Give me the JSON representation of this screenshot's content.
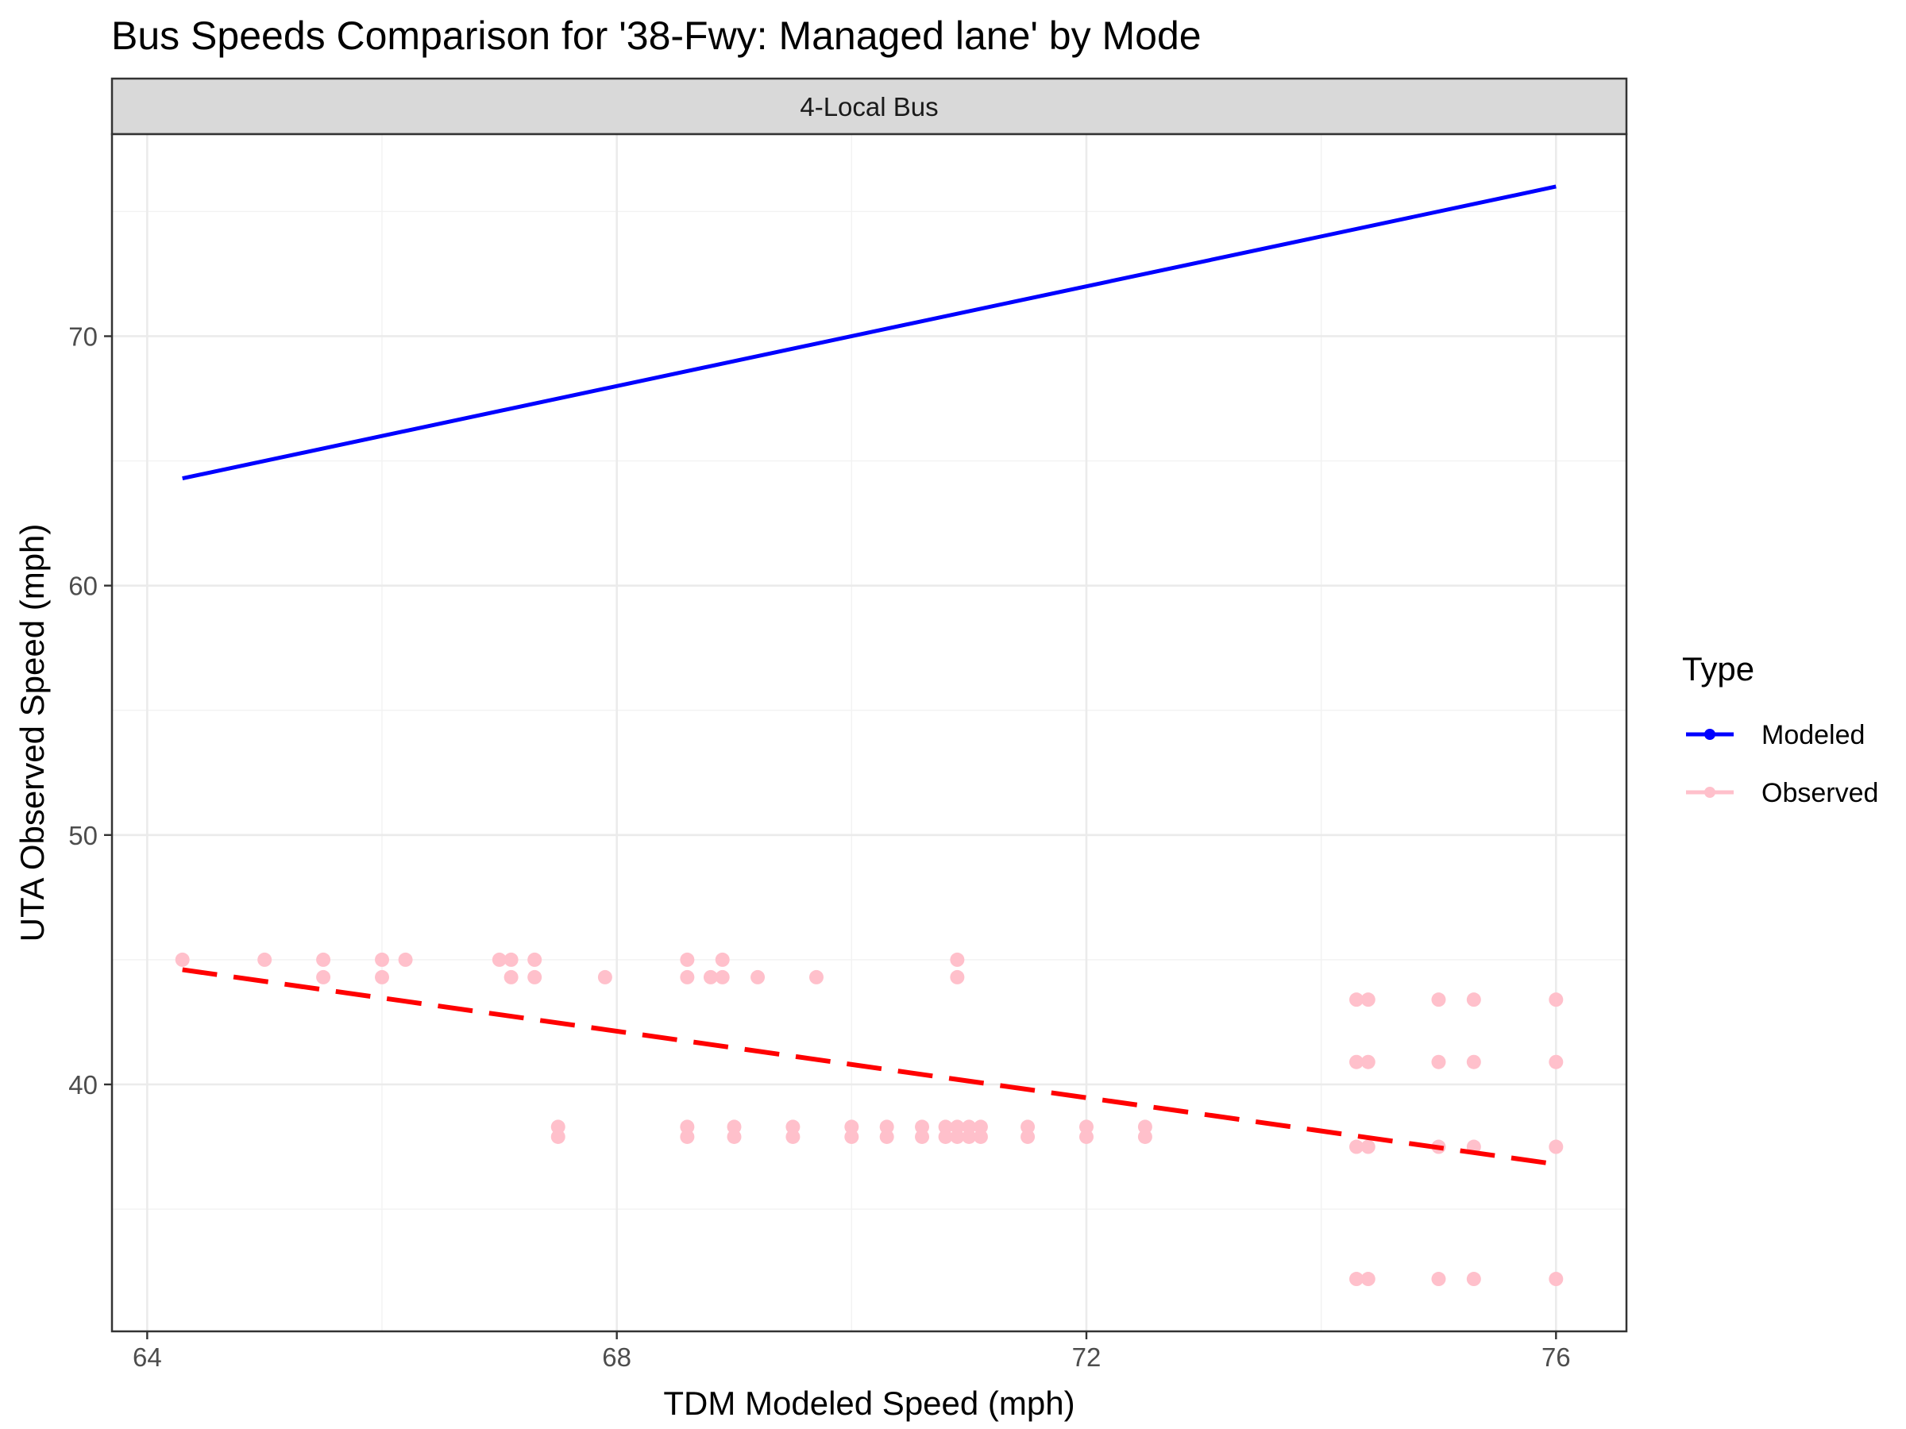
{
  "chart_data": {
    "type": "scatter",
    "title": "Bus Speeds Comparison for '38-Fwy: Managed lane' by Mode",
    "facet": "4-Local Bus",
    "xlabel": "TDM Modeled Speed (mph)",
    "ylabel": "UTA Observed Speed (mph)",
    "xlim": [
      63.7,
      76.6
    ],
    "ylim": [
      30.1,
      78.1
    ],
    "x_ticks": [
      64,
      68,
      72,
      76
    ],
    "y_ticks": [
      40,
      50,
      60,
      70
    ],
    "grid": true,
    "legend": {
      "title": "Type",
      "position": "right",
      "entries": [
        {
          "label": "Modeled",
          "color": "#0000FF",
          "linetype": "solid"
        },
        {
          "label": "Observed",
          "color": "#FFC0CB",
          "linetype": "solid"
        }
      ]
    },
    "series": [
      {
        "name": "Modeled",
        "kind": "line",
        "color": "#0000FF",
        "x": [
          64.3,
          76.0
        ],
        "y": [
          64.3,
          76.0
        ]
      },
      {
        "name": "Observed",
        "kind": "points",
        "color": "#FFC0CB",
        "x": [
          64.3,
          65.0,
          65.5,
          65.5,
          66.0,
          66.0,
          66.2,
          67.0,
          67.1,
          67.1,
          67.3,
          67.3,
          67.5,
          67.5,
          67.9,
          68.6,
          68.6,
          68.6,
          68.6,
          68.8,
          68.9,
          68.9,
          69.0,
          69.0,
          69.2,
          69.5,
          69.5,
          69.7,
          70.0,
          70.0,
          70.3,
          70.3,
          70.6,
          70.6,
          70.8,
          70.8,
          70.9,
          70.9,
          70.9,
          70.9,
          71.0,
          71.0,
          71.1,
          71.1,
          71.5,
          71.5,
          72.0,
          72.0,
          72.5,
          72.5,
          74.3,
          74.3,
          74.3,
          74.3,
          74.4,
          74.4,
          74.4,
          74.4,
          75.0,
          75.0,
          75.0,
          75.0,
          75.3,
          75.3,
          75.3,
          75.3,
          76.0,
          76.0,
          76.0,
          76.0
        ],
        "y": [
          45.0,
          45.0,
          45.0,
          44.3,
          45.0,
          44.3,
          45.0,
          45.0,
          45.0,
          44.3,
          45.0,
          44.3,
          38.3,
          37.9,
          44.3,
          45.0,
          44.3,
          38.3,
          37.9,
          44.3,
          45.0,
          44.3,
          38.3,
          37.9,
          44.3,
          38.3,
          37.9,
          44.3,
          38.3,
          37.9,
          38.3,
          37.9,
          38.3,
          37.9,
          38.3,
          37.9,
          45.0,
          44.3,
          38.3,
          37.9,
          38.3,
          37.9,
          38.3,
          37.9,
          38.3,
          37.9,
          38.3,
          37.9,
          38.3,
          37.9,
          43.4,
          40.9,
          37.5,
          32.2,
          43.4,
          40.9,
          37.5,
          32.2,
          43.4,
          40.9,
          37.5,
          32.2,
          43.4,
          40.9,
          37.5,
          32.2,
          43.4,
          40.9,
          37.5,
          32.2
        ]
      }
    ],
    "trend_lines": [
      {
        "series": "Observed",
        "color": "#FF0000",
        "linetype": "dashed",
        "x": [
          64.3,
          76.0
        ],
        "y": [
          44.6,
          36.8
        ]
      }
    ]
  }
}
